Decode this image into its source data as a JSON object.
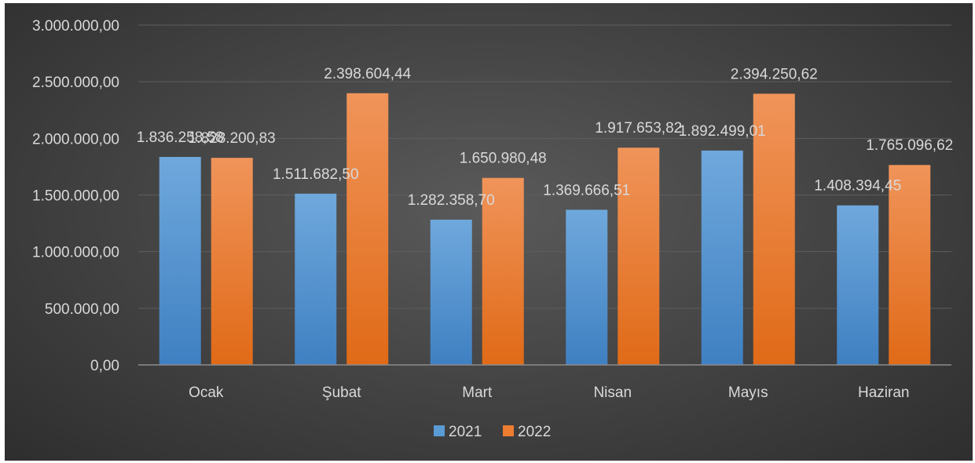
{
  "chart_data": {
    "type": "bar",
    "categories": [
      "Ocak",
      "Şubat",
      "Mart",
      "Nisan",
      "Mayıs",
      "Haziran"
    ],
    "series": [
      {
        "name": "2021",
        "color": "#5b9bd5",
        "values": [
          1836258.58,
          1511682.5,
          1282358.7,
          1369666.51,
          1892499.01,
          1408394.45
        ],
        "labels": [
          "1.836.258,58",
          "1.511.682,50",
          "1.282.358,70",
          "1.369.666,51",
          "1.892.499,01",
          "1.408.394,45"
        ]
      },
      {
        "name": "2022",
        "color": "#ed7d31",
        "values": [
          1828200.83,
          2398604.44,
          1650980.48,
          1917653.82,
          2394250.62,
          1765096.62
        ],
        "labels": [
          "1.828.200,83",
          "2.398.604,44",
          "1.650.980,48",
          "1.917.653,82",
          "2.394.250,62",
          "1.765.096,62"
        ]
      }
    ],
    "ylim": [
      0,
      3000000
    ],
    "yticks": [
      0,
      500000,
      1000000,
      1500000,
      2000000,
      2500000,
      3000000
    ],
    "ytick_labels": [
      "0,00",
      "500.000,00",
      "1.000.000,00",
      "1.500.000,00",
      "2.000.000,00",
      "2.500.000,00",
      "3.000.000,00"
    ],
    "grid": true,
    "legend_position": "bottom",
    "background": "#404040"
  }
}
